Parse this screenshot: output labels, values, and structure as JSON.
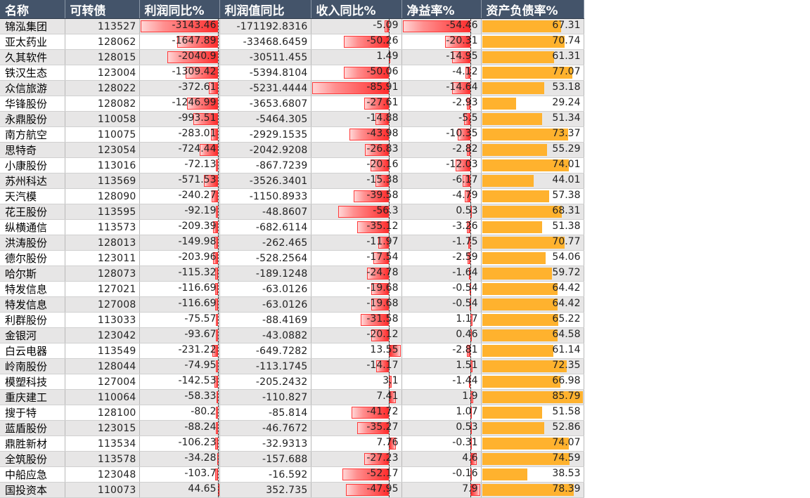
{
  "headers": [
    "名称",
    "可转债",
    "利润同比%",
    "利润值同比",
    "收入同比%",
    "净益率%",
    "资产负债率%"
  ],
  "rows": [
    {
      "name": "锦泓集团",
      "code": "113527",
      "profit_yoy": -3143.46,
      "profit_val": "-171192.8316",
      "rev_yoy": -5.09,
      "roe": -54.46,
      "debt": 67.31
    },
    {
      "name": "亚太药业",
      "code": "128062",
      "profit_yoy": -1647.89,
      "profit_val": "-33468.6459",
      "rev_yoy": -50.26,
      "roe": -20.31,
      "debt": 70.74
    },
    {
      "name": "久其软件",
      "code": "128015",
      "profit_yoy": -2040.9,
      "profit_val": "-30511.455",
      "rev_yoy": 1.49,
      "roe": -14.95,
      "debt": 61.31
    },
    {
      "name": "铁汉生态",
      "code": "123004",
      "profit_yoy": -1309.42,
      "profit_val": "-5394.8104",
      "rev_yoy": -50.06,
      "roe": -4.12,
      "debt": 77.07
    },
    {
      "name": "众信旅游",
      "code": "128022",
      "profit_yoy": -372.61,
      "profit_val": "-5231.4444",
      "rev_yoy": -85.91,
      "roe": -14.64,
      "debt": 53.18
    },
    {
      "name": "华锋股份",
      "code": "128082",
      "profit_yoy": -1246.99,
      "profit_val": "-3653.6807",
      "rev_yoy": -27.61,
      "roe": -2.93,
      "debt": 29.24
    },
    {
      "name": "永鼎股份",
      "code": "110058",
      "profit_yoy": -993.51,
      "profit_val": "-5464.305",
      "rev_yoy": -14.88,
      "roe": -5.5,
      "debt": 51.34
    },
    {
      "name": "南方航空",
      "code": "110075",
      "profit_yoy": -283.01,
      "profit_val": "-2929.1535",
      "rev_yoy": -43.98,
      "roe": -10.35,
      "debt": 73.37
    },
    {
      "name": "思特奇",
      "code": "123054",
      "profit_yoy": -724.44,
      "profit_val": "-2042.9208",
      "rev_yoy": -26.83,
      "roe": -2.82,
      "debt": 55.29
    },
    {
      "name": "小康股份",
      "code": "113016",
      "profit_yoy": -72.13,
      "profit_val": "-867.7239",
      "rev_yoy": -20.16,
      "roe": -12.03,
      "debt": 74.01
    },
    {
      "name": "苏州科达",
      "code": "113569",
      "profit_yoy": -571.53,
      "profit_val": "-3526.3401",
      "rev_yoy": -15.38,
      "roe": -6.17,
      "debt": 44.01
    },
    {
      "name": "天汽模",
      "code": "128090",
      "profit_yoy": -240.27,
      "profit_val": "-1150.8933",
      "rev_yoy": -39.58,
      "roe": -4.79,
      "debt": 57.38
    },
    {
      "name": "花王股份",
      "code": "113595",
      "profit_yoy": -92.19,
      "profit_val": "-48.8607",
      "rev_yoy": -56.3,
      "roe": 0.53,
      "debt": 68.31
    },
    {
      "name": "纵横通信",
      "code": "113573",
      "profit_yoy": -209.39,
      "profit_val": "-682.6114",
      "rev_yoy": -35.12,
      "roe": -3.26,
      "debt": 51.38
    },
    {
      "name": "洪涛股份",
      "code": "128013",
      "profit_yoy": -149.98,
      "profit_val": "-262.465",
      "rev_yoy": -11.97,
      "roe": -1.75,
      "debt": 70.77
    },
    {
      "name": "德尔股份",
      "code": "123011",
      "profit_yoy": -203.96,
      "profit_val": "-528.2564",
      "rev_yoy": -17.54,
      "roe": -2.59,
      "debt": 54.06
    },
    {
      "name": "哈尔斯",
      "code": "128073",
      "profit_yoy": -115.32,
      "profit_val": "-189.1248",
      "rev_yoy": -24.78,
      "roe": -1.64,
      "debt": 59.72
    },
    {
      "name": "特发信息",
      "code": "127021",
      "profit_yoy": -116.69,
      "profit_val": "-63.0126",
      "rev_yoy": -19.68,
      "roe": -0.54,
      "debt": 64.42
    },
    {
      "name": "特发信息",
      "code": "127008",
      "profit_yoy": -116.69,
      "profit_val": "-63.0126",
      "rev_yoy": -19.68,
      "roe": -0.54,
      "debt": 64.42
    },
    {
      "name": "利群股份",
      "code": "113033",
      "profit_yoy": -75.57,
      "profit_val": "-88.4169",
      "rev_yoy": -31.58,
      "roe": 1.17,
      "debt": 65.22
    },
    {
      "name": "金银河",
      "code": "123042",
      "profit_yoy": -93.67,
      "profit_val": "-43.0882",
      "rev_yoy": -20.12,
      "roe": 0.46,
      "debt": 64.58
    },
    {
      "name": "白云电器",
      "code": "113549",
      "profit_yoy": -231.22,
      "profit_val": "-649.7282",
      "rev_yoy": 13.55,
      "roe": -2.81,
      "debt": 61.14
    },
    {
      "name": "岭南股份",
      "code": "128044",
      "profit_yoy": -74.95,
      "profit_val": "-113.1745",
      "rev_yoy": -14.17,
      "roe": 1.51,
      "debt": 72.35
    },
    {
      "name": "模塑科技",
      "code": "127004",
      "profit_yoy": -142.53,
      "profit_val": "-205.2432",
      "rev_yoy": 3.1,
      "roe": -1.44,
      "debt": 66.98
    },
    {
      "name": "重庆建工",
      "code": "110064",
      "profit_yoy": -58.33,
      "profit_val": "-110.827",
      "rev_yoy": 7.41,
      "roe": 1.9,
      "debt": 85.79
    },
    {
      "name": "搜于特",
      "code": "128100",
      "profit_yoy": -80.2,
      "profit_val": "-85.814",
      "rev_yoy": -41.72,
      "roe": 1.07,
      "debt": 51.58
    },
    {
      "name": "蓝盾股份",
      "code": "123015",
      "profit_yoy": -88.24,
      "profit_val": "-46.7672",
      "rev_yoy": -35.27,
      "roe": 0.53,
      "debt": 52.86
    },
    {
      "name": "鼎胜新材",
      "code": "113534",
      "profit_yoy": -106.23,
      "profit_val": "-32.9313",
      "rev_yoy": 7.76,
      "roe": -0.31,
      "debt": 74.07
    },
    {
      "name": "全筑股份",
      "code": "113578",
      "profit_yoy": -34.28,
      "profit_val": "-157.688",
      "rev_yoy": -27.23,
      "roe": 4.6,
      "debt": 74.59
    },
    {
      "name": "中船应急",
      "code": "123048",
      "profit_yoy": -103.7,
      "profit_val": "-16.592",
      "rev_yoy": -52.17,
      "roe": -0.16,
      "debt": 38.53
    },
    {
      "name": "国投资本",
      "code": "110073",
      "profit_yoy": 44.65,
      "profit_val": "352.735",
      "rev_yoy": -47.95,
      "roe": 7.9,
      "debt": 78.39
    }
  ],
  "colors": {
    "header_bg": "#44546a",
    "neg_bar": "#ff2d2d",
    "debt_bar": "#ffb22e",
    "band": "#e7e6e6"
  }
}
